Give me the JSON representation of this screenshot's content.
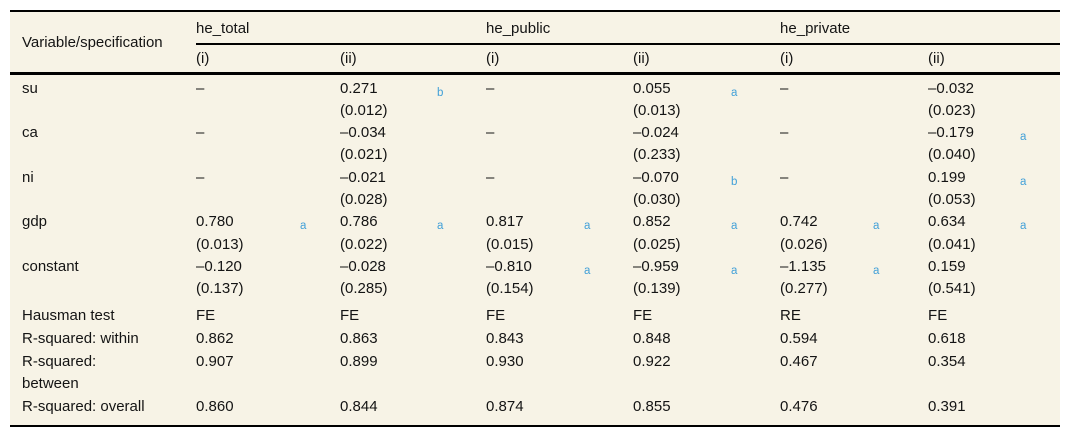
{
  "page": {
    "background_color": "#ffffff",
    "table_background_color": "#f7f3e6",
    "rule_color": "#000000",
    "text_color": "#141414",
    "superscript_color": "#42a0d8"
  },
  "header": {
    "variable_label": "Variable/specification",
    "groups": [
      {
        "name": "he_total",
        "subs": [
          "(i)",
          "(ii)"
        ]
      },
      {
        "name": "he_public",
        "subs": [
          "(i)",
          "(ii)"
        ]
      },
      {
        "name": "he_private",
        "subs": [
          "(i)",
          "(ii)"
        ]
      }
    ]
  },
  "rows": [
    {
      "label": "su",
      "kind": "var",
      "cells": [
        {
          "v": "–"
        },
        {
          "v": "0.271",
          "sup": "b",
          "se": "(0.012)"
        },
        {
          "v": "–"
        },
        {
          "v": "0.055",
          "sup": "a",
          "se": "(0.013)"
        },
        {
          "v": "–"
        },
        {
          "v": "–0.032",
          "se": "(0.023)"
        }
      ]
    },
    {
      "label": "ca",
      "kind": "var",
      "cells": [
        {
          "v": "–"
        },
        {
          "v": "–0.034",
          "se": "(0.021)"
        },
        {
          "v": "–"
        },
        {
          "v": "–0.024",
          "se": "(0.233)"
        },
        {
          "v": "–"
        },
        {
          "v": "–0.179",
          "sup": "a",
          "se": "(0.040)"
        }
      ]
    },
    {
      "label": "ni",
      "kind": "var",
      "cells": [
        {
          "v": "–"
        },
        {
          "v": "–0.021",
          "se": "(0.028)"
        },
        {
          "v": "–"
        },
        {
          "v": "–0.070",
          "sup": "b",
          "se": "(0.030)"
        },
        {
          "v": "–"
        },
        {
          "v": "0.199",
          "sup": "a",
          "se": "(0.053)"
        }
      ]
    },
    {
      "label": "gdp",
      "kind": "var",
      "cells": [
        {
          "v": "0.780",
          "sup": "a",
          "se": "(0.013)"
        },
        {
          "v": "0.786",
          "sup": "a",
          "se": "(0.022)"
        },
        {
          "v": "0.817",
          "sup": "a",
          "se": "(0.015)"
        },
        {
          "v": "0.852",
          "sup": "a",
          "se": "(0.025)"
        },
        {
          "v": "0.742",
          "sup": "a",
          "se": "(0.026)"
        },
        {
          "v": "0.634",
          "sup": "a",
          "se": "(0.041)"
        }
      ]
    },
    {
      "label": "constant",
      "kind": "var",
      "cells": [
        {
          "v": "–0.120",
          "se": "(0.137)"
        },
        {
          "v": "–0.028",
          "se": "(0.285)"
        },
        {
          "v": "–0.810",
          "sup": "a",
          "se": "(0.154)"
        },
        {
          "v": "–0.959",
          "sup": "a",
          "se": "(0.139)"
        },
        {
          "v": "–1.135",
          "sup": "a",
          "se": "(0.277)"
        },
        {
          "v": "0.159",
          "se": "(0.541)"
        }
      ]
    },
    {
      "label": "Hausman test",
      "kind": "stat stat-first",
      "cells": [
        {
          "v": "FE"
        },
        {
          "v": "FE"
        },
        {
          "v": "FE"
        },
        {
          "v": "FE"
        },
        {
          "v": "RE"
        },
        {
          "v": "FE"
        }
      ]
    },
    {
      "label": "R-squared: within",
      "kind": "stat",
      "cells": [
        {
          "v": "0.862"
        },
        {
          "v": "0.863"
        },
        {
          "v": "0.843"
        },
        {
          "v": "0.848"
        },
        {
          "v": "0.594"
        },
        {
          "v": "0.618"
        }
      ]
    },
    {
      "label": "R-squared:\nbetween",
      "kind": "stat",
      "cells": [
        {
          "v": "0.907"
        },
        {
          "v": "0.899"
        },
        {
          "v": "0.930"
        },
        {
          "v": "0.922"
        },
        {
          "v": "0.467"
        },
        {
          "v": "0.354"
        }
      ]
    },
    {
      "label": "R-squared: overall",
      "kind": "stat",
      "cells": [
        {
          "v": "0.860"
        },
        {
          "v": "0.844"
        },
        {
          "v": "0.874"
        },
        {
          "v": "0.855"
        },
        {
          "v": "0.476"
        },
        {
          "v": "0.391"
        }
      ]
    }
  ]
}
